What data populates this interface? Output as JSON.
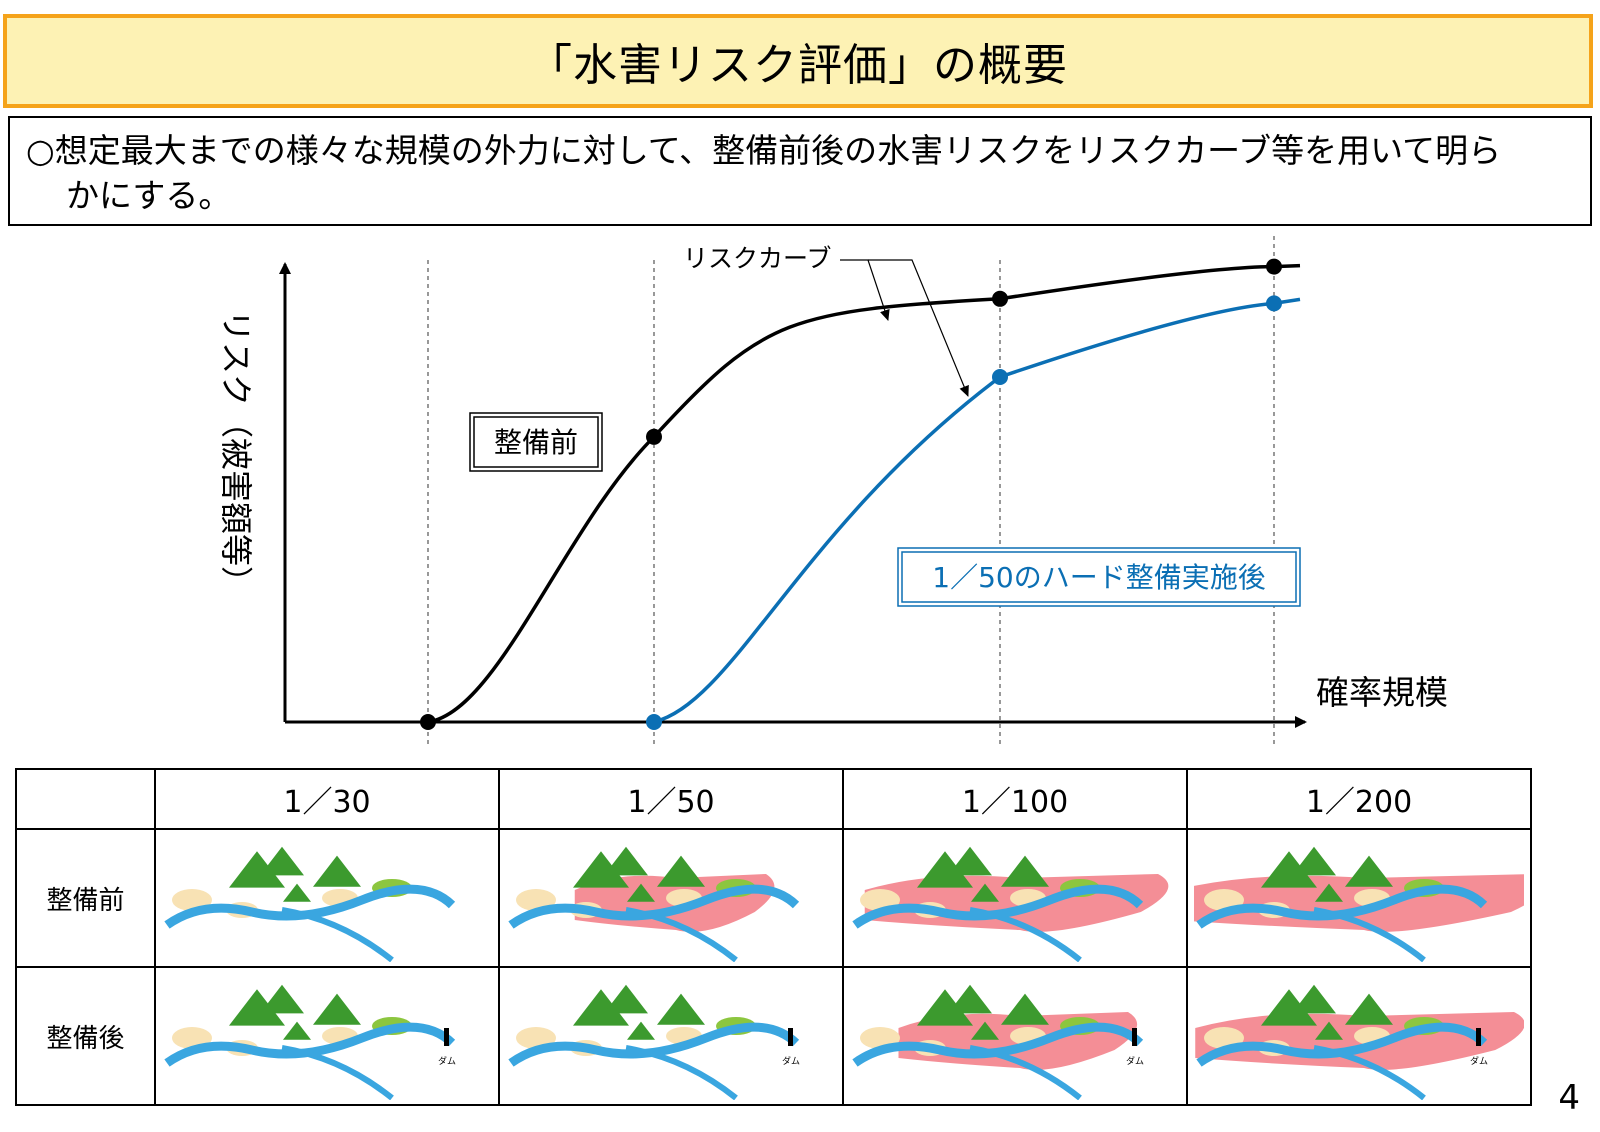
{
  "header": {
    "title": "「水害リスク評価」の概要"
  },
  "summary": {
    "line1": "○想定最大までの様々な規模の外力に対して、整備前後の水害リスクをリスクカーブ等を用いて明ら",
    "line2": "かにする。"
  },
  "chart_data": {
    "type": "line",
    "title": "",
    "ylabel": "リスク（被害額等）",
    "xlabel": "確率規模",
    "curve_callout": "リスクカーブ",
    "categories": [
      "1／30",
      "1／50",
      "1／100",
      "1／200"
    ],
    "series": [
      {
        "name": "整備前",
        "color": "#000000",
        "values": [
          0,
          0.62,
          0.92,
          0.99
        ]
      },
      {
        "name": "1／50のハード整備実施後",
        "color": "#0b6fb4",
        "values": [
          null,
          0,
          0.75,
          0.91
        ]
      }
    ]
  },
  "table": {
    "columns": [
      "1／30",
      "1／50",
      "1／100",
      "1／200"
    ],
    "rows": [
      {
        "label": "整備前",
        "flood": [
          0,
          0.35,
          0.75,
          1.0
        ],
        "dam": false
      },
      {
        "label": "整備後",
        "flood": [
          0,
          0,
          0.5,
          0.85
        ],
        "dam": true
      }
    ],
    "dam_label": "ダム"
  },
  "colors": {
    "title_border": "#f5a31a",
    "title_fill": "#fdf2b4",
    "before": "#000000",
    "after": "#0b6fb4",
    "river": "#3aa6e0",
    "flood": "#f27a84",
    "tree": "#3c9a2e",
    "field": "#f8e2b4"
  },
  "page": {
    "number": "4"
  }
}
